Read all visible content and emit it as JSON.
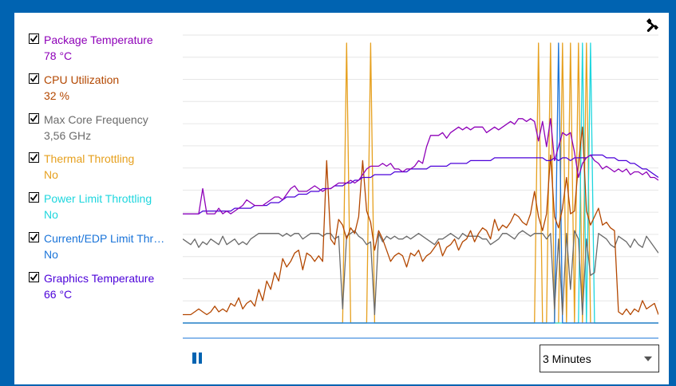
{
  "legend": [
    {
      "label": "Package Temperature",
      "value": "78 °C",
      "color": "#8e00b8"
    },
    {
      "label": "CPU Utilization",
      "value": "32 %",
      "color": "#b34700"
    },
    {
      "label": "Max Core Frequency",
      "value": "3,56 GHz",
      "color": "#6b6b6b"
    },
    {
      "label": "Thermal Throttling",
      "value": "No",
      "color": "#e6a01e"
    },
    {
      "label": "Power Limit Throttling",
      "value": "No",
      "color": "#1ed6de"
    },
    {
      "label": "Current/EDP Limit Throttling",
      "value": "No",
      "color": "#1a74d9"
    },
    {
      "label": "Graphics Temperature",
      "value": "66 °C",
      "color": "#4b00d9"
    }
  ],
  "controls": {
    "pause_icon": "pause-icon",
    "settings_icon": "wrench-icon",
    "time_range": "3 Minutes"
  },
  "chart_data": {
    "type": "line",
    "grid": true,
    "legend_position": "left",
    "axes_labels": "none",
    "y_scale": "0-100 normalized",
    "series": [
      {
        "name": "Package Temperature",
        "color": "#8e00b8",
        "values": [
          39,
          39,
          39,
          39,
          39,
          48,
          39,
          39,
          39,
          41,
          39,
          40,
          39,
          40,
          41,
          42,
          44,
          43,
          42,
          42,
          42,
          43,
          44,
          45,
          45,
          44,
          46,
          48,
          49,
          47,
          47,
          47,
          48,
          49,
          48,
          47,
          48,
          48,
          49,
          50,
          50,
          50,
          51,
          50,
          51,
          53,
          55,
          56,
          56,
          56,
          57,
          56,
          57,
          55,
          55,
          54,
          55,
          55,
          56,
          58,
          57,
          63,
          67,
          67,
          67,
          68,
          66,
          68,
          69,
          70,
          69,
          70,
          69,
          70,
          70,
          70,
          68,
          69,
          70,
          69,
          70,
          71,
          72,
          71,
          73,
          73,
          72,
          73,
          72,
          65,
          72,
          63,
          73,
          58,
          63,
          68,
          67,
          68,
          61,
          52,
          57,
          59,
          60,
          58,
          57,
          55,
          56,
          55,
          54,
          55,
          54,
          55,
          53,
          54,
          54,
          53,
          54,
          52,
          52,
          51
        ]
      },
      {
        "name": "Graphics Temperature",
        "color": "#4b00d9",
        "values": [
          39,
          39,
          39,
          39,
          39,
          40,
          40,
          40,
          40,
          40,
          40,
          40,
          40,
          41,
          41,
          41,
          41,
          41,
          42,
          42,
          42,
          42,
          43,
          43,
          43,
          44,
          45,
          45,
          45,
          46,
          46,
          46,
          47,
          47,
          47,
          48,
          48,
          48,
          49,
          49,
          49,
          50,
          50,
          51,
          51,
          52,
          52,
          52,
          53,
          53,
          53,
          53,
          53,
          54,
          54,
          54,
          54,
          55,
          55,
          55,
          55,
          55,
          56,
          56,
          56,
          56,
          56,
          57,
          57,
          57,
          57,
          57,
          58,
          58,
          58,
          58,
          58,
          58,
          59,
          59,
          59,
          59,
          59,
          59,
          59,
          59,
          59,
          59,
          59,
          59,
          59,
          58,
          58,
          59,
          58,
          59,
          59,
          58,
          59,
          59,
          59,
          59,
          60,
          60,
          60,
          60,
          59,
          59,
          59,
          58,
          58,
          58,
          57,
          57,
          56,
          55,
          55,
          54,
          53,
          52
        ]
      },
      {
        "name": "Max Core Frequency",
        "color": "#6b6b6b",
        "values": [
          30,
          29,
          28,
          30,
          27,
          29,
          28,
          30,
          29,
          28,
          31,
          28,
          29,
          30,
          28,
          29,
          28,
          30,
          31,
          32,
          32,
          32,
          32,
          32,
          32,
          31,
          32,
          31,
          32,
          32,
          30,
          31,
          32,
          32,
          32,
          31,
          32,
          32,
          30,
          31,
          5,
          31,
          32,
          33,
          31,
          30,
          28,
          29,
          3,
          32,
          29,
          31,
          30,
          31,
          30,
          30,
          31,
          30,
          31,
          32,
          31,
          30,
          29,
          28,
          30,
          30,
          31,
          32,
          31,
          30,
          32,
          31,
          31,
          31,
          31,
          30,
          30,
          28,
          29,
          30,
          32,
          32,
          31,
          30,
          32,
          33,
          32,
          31,
          32,
          32,
          32,
          30,
          32,
          5,
          30,
          3,
          32,
          12,
          33,
          30,
          3,
          30,
          17,
          18,
          32,
          31,
          30,
          28,
          27,
          31,
          30,
          29,
          27,
          30,
          28,
          27,
          31,
          29,
          27,
          25
        ]
      },
      {
        "name": "CPU Utilization",
        "color": "#b34700",
        "values": [
          3,
          3,
          3,
          4,
          5,
          4,
          3,
          4,
          6,
          4,
          5,
          4,
          7,
          6,
          9,
          5,
          7,
          8,
          6,
          12,
          8,
          15,
          12,
          18,
          15,
          23,
          20,
          22,
          25,
          26,
          19,
          25,
          24,
          22,
          24,
          22,
          58,
          30,
          28,
          37,
          35,
          30,
          34,
          32,
          38,
          58,
          40,
          36,
          26,
          33,
          30,
          26,
          22,
          24,
          25,
          24,
          20,
          25,
          24,
          26,
          22,
          24,
          25,
          27,
          29,
          24,
          27,
          28,
          30,
          26,
          29,
          30,
          33,
          29,
          32,
          34,
          33,
          30,
          37,
          33,
          35,
          34,
          36,
          39,
          38,
          36,
          35,
          39,
          47,
          38,
          33,
          39,
          60,
          38,
          34,
          41,
          52,
          39,
          40,
          57,
          70,
          40,
          35,
          38,
          41,
          35,
          36,
          34,
          33,
          4,
          3,
          5,
          3,
          5,
          4,
          8,
          5,
          6,
          7,
          3
        ]
      },
      {
        "name": "Thermal Throttling",
        "color": "#e6a01e",
        "values": [
          0,
          0,
          0,
          0,
          0,
          0,
          0,
          0,
          0,
          0,
          0,
          0,
          0,
          0,
          0,
          0,
          0,
          0,
          0,
          0,
          0,
          0,
          0,
          0,
          0,
          0,
          0,
          0,
          0,
          0,
          0,
          0,
          0,
          0,
          0,
          0,
          0,
          0,
          0,
          0,
          0,
          100,
          0,
          0,
          0,
          0,
          0,
          100,
          0,
          0,
          0,
          0,
          0,
          0,
          0,
          0,
          0,
          0,
          0,
          0,
          0,
          0,
          0,
          0,
          0,
          0,
          0,
          0,
          0,
          0,
          0,
          0,
          0,
          0,
          0,
          0,
          0,
          0,
          0,
          0,
          0,
          0,
          0,
          0,
          0,
          0,
          0,
          0,
          0,
          100,
          0,
          0,
          100,
          0,
          0,
          100,
          0,
          100,
          0,
          100,
          0,
          100,
          0,
          0,
          0,
          0,
          0,
          0,
          0,
          0,
          0,
          0,
          0,
          0,
          0,
          0,
          0,
          0,
          0,
          0
        ]
      },
      {
        "name": "Power Limit Throttling",
        "color": "#1ed6de",
        "values": [
          0,
          0,
          0,
          0,
          0,
          0,
          0,
          0,
          0,
          0,
          0,
          0,
          0,
          0,
          0,
          0,
          0,
          0,
          0,
          0,
          0,
          0,
          0,
          0,
          0,
          0,
          0,
          0,
          0,
          0,
          0,
          0,
          0,
          0,
          0,
          0,
          0,
          0,
          0,
          0,
          0,
          0,
          0,
          0,
          0,
          0,
          0,
          0,
          0,
          0,
          0,
          0,
          0,
          0,
          0,
          0,
          0,
          0,
          0,
          0,
          0,
          0,
          0,
          0,
          0,
          0,
          0,
          0,
          0,
          0,
          0,
          0,
          0,
          0,
          0,
          0,
          0,
          0,
          0,
          0,
          0,
          0,
          0,
          0,
          0,
          0,
          0,
          0,
          0,
          0,
          0,
          0,
          0,
          0,
          0,
          0,
          0,
          0,
          0,
          0,
          100,
          0,
          100,
          0,
          0,
          0,
          0,
          0,
          0,
          0,
          0,
          0,
          0,
          0,
          0,
          0,
          0,
          0,
          0,
          0
        ]
      },
      {
        "name": "Current/EDP Limit Throttling",
        "color": "#1a74d9",
        "values": [
          0,
          0,
          0,
          0,
          0,
          0,
          0,
          0,
          0,
          0,
          0,
          0,
          0,
          0,
          0,
          0,
          0,
          0,
          0,
          0,
          0,
          0,
          0,
          0,
          0,
          0,
          0,
          0,
          0,
          0,
          0,
          0,
          0,
          0,
          0,
          0,
          0,
          0,
          0,
          0,
          0,
          0,
          0,
          0,
          0,
          0,
          0,
          0,
          0,
          0,
          0,
          0,
          0,
          0,
          0,
          0,
          0,
          0,
          0,
          0,
          0,
          0,
          0,
          0,
          0,
          0,
          0,
          0,
          0,
          0,
          0,
          0,
          0,
          0,
          0,
          0,
          0,
          0,
          0,
          0,
          0,
          0,
          0,
          0,
          0,
          0,
          0,
          0,
          0,
          0,
          0,
          0,
          0,
          0,
          100,
          0,
          0,
          0,
          0,
          0,
          0,
          0,
          0,
          0,
          0,
          0,
          0,
          0,
          0,
          0,
          0,
          0,
          0,
          0,
          0,
          0,
          0,
          0,
          0,
          0
        ]
      }
    ]
  }
}
